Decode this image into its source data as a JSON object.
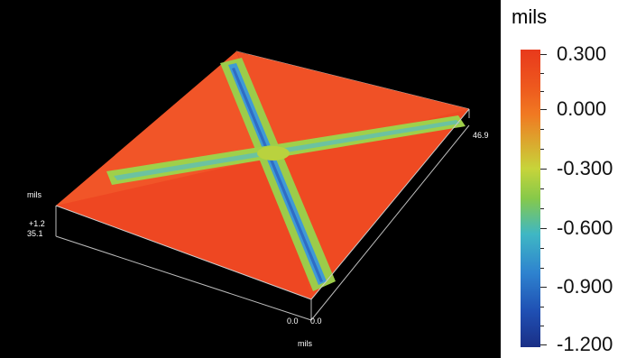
{
  "plot": {
    "axis_label_left": "mils",
    "axis_label_bottom": "mils",
    "tick_front_left_top": "+1.2",
    "tick_front_left_bottom": "35.1",
    "tick_right": "46.9",
    "tick_bottom_a": "0.0",
    "tick_bottom_b": "0.0"
  },
  "colorbar": {
    "title": "mils",
    "labels": [
      "0.300",
      "0.000",
      "-0.300",
      "-0.600",
      "-0.900",
      "-1.200"
    ],
    "colors": {
      "high": "#e8391c",
      "mid": "#86c94a",
      "low": "#1a2f86"
    }
  }
}
